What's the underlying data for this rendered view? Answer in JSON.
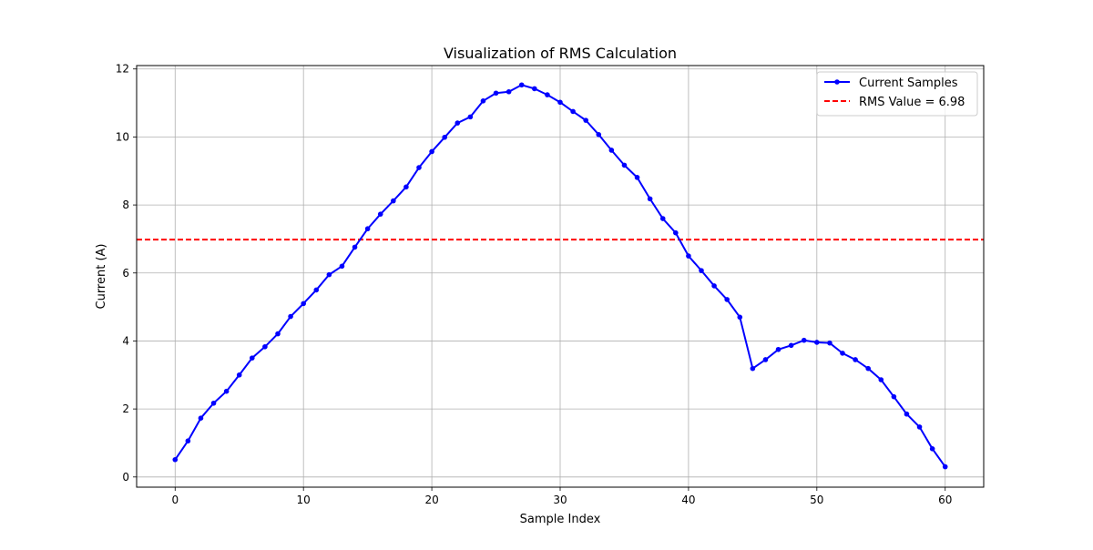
{
  "chart_data": {
    "type": "line",
    "title": "Visualization of RMS Calculation",
    "xlabel": "Sample Index",
    "ylabel": "Current (A)",
    "xlim": [
      -3,
      63
    ],
    "ylim": [
      -0.3,
      12.1
    ],
    "xticks": [
      0,
      10,
      20,
      30,
      40,
      50,
      60
    ],
    "yticks": [
      0,
      2,
      4,
      6,
      8,
      10,
      12
    ],
    "grid": true,
    "legend_position": "top-right",
    "series": [
      {
        "name": "Current Samples",
        "color": "#0000ff",
        "marker": "circle",
        "x": [
          0,
          1,
          2,
          3,
          4,
          5,
          6,
          7,
          8,
          9,
          10,
          11,
          12,
          13,
          14,
          15,
          16,
          17,
          18,
          19,
          20,
          21,
          22,
          23,
          24,
          25,
          26,
          27,
          28,
          29,
          30,
          31,
          32,
          33,
          34,
          35,
          36,
          37,
          38,
          39,
          40,
          41,
          42,
          43,
          44,
          45,
          46,
          47,
          48,
          49,
          50,
          51,
          52,
          53,
          54,
          55,
          56,
          57,
          58,
          59,
          60
        ],
        "values": [
          0.51,
          1.06,
          1.73,
          2.17,
          2.52,
          3.0,
          3.5,
          3.83,
          4.21,
          4.72,
          5.1,
          5.5,
          5.95,
          6.2,
          6.76,
          7.3,
          7.73,
          8.12,
          8.53,
          9.1,
          9.57,
          9.99,
          10.41,
          10.59,
          11.06,
          11.29,
          11.33,
          11.53,
          11.42,
          11.24,
          11.02,
          10.75,
          10.49,
          10.07,
          9.61,
          9.17,
          8.81,
          8.18,
          7.6,
          7.18,
          6.5,
          6.07,
          5.62,
          5.22,
          4.7,
          3.19,
          3.45,
          3.75,
          3.87,
          4.02,
          3.96,
          3.94,
          3.64,
          3.45,
          3.19,
          2.86,
          2.36,
          1.85,
          1.47,
          0.83,
          0.3
        ]
      },
      {
        "name": "RMS Value = 6.98",
        "color": "#ff0000",
        "style": "dashed",
        "value": 6.98
      }
    ]
  }
}
